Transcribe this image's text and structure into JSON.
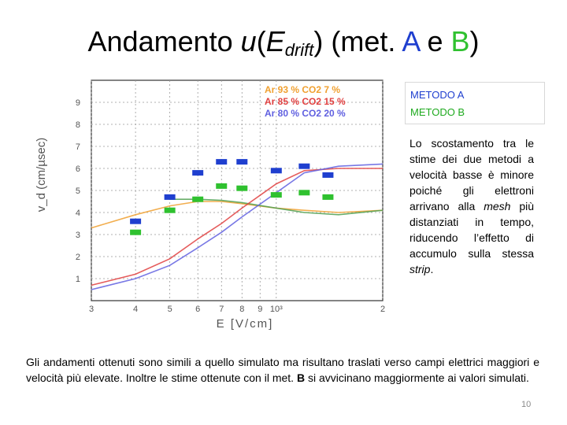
{
  "slide": {
    "title_prefix": "Andamento ",
    "title_var": "u",
    "title_paren_open": "(",
    "title_e": "E",
    "title_sub": "drift",
    "title_paren_close": ") (met. ",
    "title_a": "A",
    "title_e_conj": " e ",
    "title_b": "B",
    "title_end": ")"
  },
  "legend": {
    "method_a": "METODO A",
    "method_b": "METODO B"
  },
  "side_text": {
    "p1": "Lo scostamento tra le stime dei due metodi a velocità basse è minore poiché gli elettroni arrivano alla ",
    "mesh": "mesh",
    "p2": " più distanziati in tempo, riducendo l’effetto di accumulo sulla stessa ",
    "strip": "strip",
    "p3": "."
  },
  "bottom_text": {
    "p1": "Gli andamenti ottenuti sono simili a quello simulato ma risultano traslati verso campi elettrici maggiori e velocità più elevate. Inoltre le stime ottenute con il met. ",
    "b": "B",
    "p2": " si avvicinano maggiormente ai valori simulati."
  },
  "page_number": "10",
  "colors": {
    "method_a": "#1f3fcf",
    "method_b": "#2fc12f",
    "ar93": "#f0a030",
    "ar85": "#e04040",
    "ar80": "#6060e0"
  },
  "chart_data": {
    "type": "scatter",
    "x_scale": "log",
    "xlabel": "E [V/cm]",
    "ylabel": "v_d (cm/µsec)",
    "xlim": [
      300,
      2000
    ],
    "ylim": [
      0,
      10
    ],
    "x_tick_labels": [
      "3",
      "4",
      "5",
      "6",
      "7",
      "8",
      "9",
      "10³",
      "2"
    ],
    "y_tick_labels": [
      "1",
      "2",
      "3",
      "4",
      "5",
      "6",
      "7",
      "8",
      "9"
    ],
    "grid": true,
    "simulated_legend": [
      "Ar 93 % CO2  7 %",
      "Ar 85 % CO2  15 %",
      "Ar 80 % CO2  20 %"
    ],
    "series": [
      {
        "name": "METODO A",
        "color": "#1f3fcf",
        "x": [
          400,
          500,
          600,
          700,
          800,
          1000,
          1200,
          1400
        ],
        "y": [
          3.6,
          4.7,
          5.8,
          6.3,
          6.3,
          5.9,
          6.1,
          5.7
        ]
      },
      {
        "name": "METODO B",
        "color": "#2fc12f",
        "x": [
          400,
          500,
          600,
          700,
          800,
          1000,
          1200,
          1400
        ],
        "y": [
          3.1,
          4.1,
          4.6,
          5.2,
          5.1,
          4.8,
          4.9,
          4.7
        ]
      },
      {
        "name": "Ar 93 % CO2  7 %",
        "color": "#f0a030",
        "x": [
          300,
          400,
          500,
          600,
          700,
          800,
          1000,
          1200,
          1500,
          2000
        ],
        "y": [
          3.3,
          3.9,
          4.3,
          4.5,
          4.5,
          4.4,
          4.2,
          4.1,
          4.0,
          4.1
        ]
      },
      {
        "name": "Ar 93 % CO2  7 % (green)",
        "color": "#50a050",
        "x": [
          500,
          600,
          700,
          800,
          1000,
          1200,
          1500,
          2000
        ],
        "y": [
          4.6,
          4.6,
          4.55,
          4.45,
          4.2,
          4.0,
          3.9,
          4.1
        ]
      },
      {
        "name": "Ar 85 % CO2  15 %",
        "color": "#e04040",
        "x": [
          300,
          400,
          500,
          600,
          700,
          800,
          1000,
          1200,
          1500,
          2000
        ],
        "y": [
          0.7,
          1.2,
          1.9,
          2.8,
          3.5,
          4.2,
          5.3,
          5.9,
          6.0,
          6.0
        ]
      },
      {
        "name": "Ar 80 % CO2  20 %",
        "color": "#6060e0",
        "x": [
          300,
          400,
          500,
          600,
          700,
          800,
          1000,
          1200,
          1500,
          2000
        ],
        "y": [
          0.5,
          1.0,
          1.6,
          2.4,
          3.1,
          3.8,
          4.9,
          5.8,
          6.1,
          6.2
        ]
      }
    ]
  }
}
